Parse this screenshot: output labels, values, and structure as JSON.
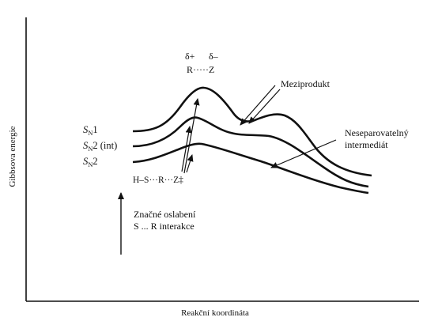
{
  "axes": {
    "ylabel": "Gibbsova energie",
    "xlabel": "Reakční koordináta"
  },
  "curves": [
    {
      "name": "SN1",
      "prefix": "S",
      "sub": "N",
      "suffix": "1"
    },
    {
      "name": "SN2 (int)",
      "prefix": "S",
      "sub": "N",
      "suffix": "2 (int)"
    },
    {
      "name": "SN2",
      "prefix": "S",
      "sub": "N",
      "suffix": "2"
    }
  ],
  "annotations": {
    "delta_plus": "δ+",
    "delta_minus": "δ–",
    "ion_pair": "R·····Z",
    "intermediate": "Meziprodukt",
    "inseparable_line1": "Neseparovatelný",
    "inseparable_line2": "intermediát",
    "transition_state": "H–S···R···Z‡",
    "weakening_line1": "Značné oslabení",
    "weakening_line2": "S ... R interakce"
  },
  "colors": {
    "ink": "#111111",
    "background": "#ffffff"
  }
}
